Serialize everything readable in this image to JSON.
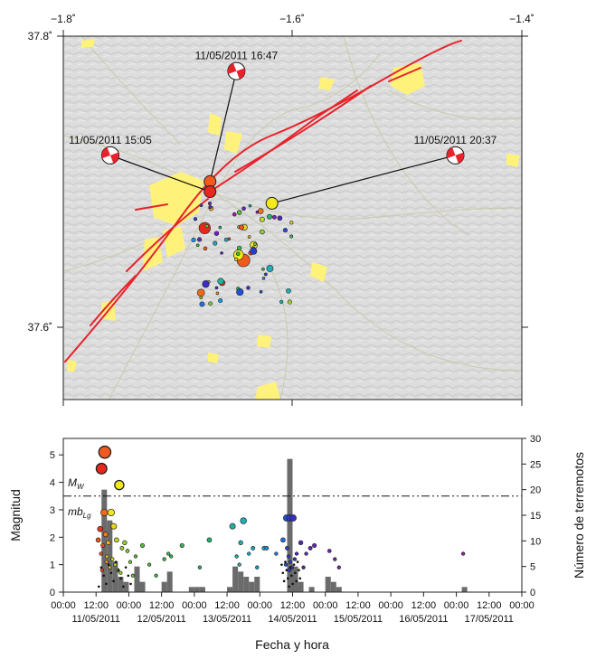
{
  "map": {
    "lon_ticks": [
      "−1.8˚",
      "−1.6˚",
      "−1.4˚"
    ],
    "lat_ticks": [
      "37.8˚",
      "37.6˚"
    ],
    "lon_range": [
      -1.8,
      -1.4
    ],
    "lat_range": [
      37.55,
      37.8
    ],
    "fault_color": "#e8222a",
    "urban_color": "#fff27a",
    "mechanisms": [
      {
        "label": "11/05/2011 16:47",
        "lon": -1.649,
        "lat": 37.776,
        "epi_lon": -1.672,
        "epi_lat": 37.7
      },
      {
        "label": "11/05/2011 15:05",
        "lon": -1.759,
        "lat": 37.718,
        "epi_lon": -1.672,
        "epi_lat": 37.693
      },
      {
        "label": "11/05/2011 20:37",
        "lon": -1.458,
        "lat": 37.718,
        "epi_lon": -1.618,
        "epi_lat": 37.685
      }
    ]
  },
  "chart_data": {
    "type": "scatter",
    "xlabel": "Fecha y hora",
    "ylabel": "Magnitud",
    "y2label": "Número de terremotos",
    "ylim": [
      0,
      5.6
    ],
    "y2lim": [
      0,
      30
    ],
    "xlim_hours": [
      0,
      168
    ],
    "x_ticks": [
      "00:00",
      "12:00",
      "00:00",
      "12:00",
      "00:00",
      "12:00",
      "00:00",
      "12:00",
      "00:00",
      "12:00",
      "00:00",
      "12:00",
      "00:00",
      "12:00",
      "00:00"
    ],
    "date_labels": [
      "11/05/2011",
      "12/05/2011",
      "13/05/2011",
      "14/05/2011",
      "15/05/2011",
      "16/05/2011",
      "17/05/2011"
    ],
    "y_ticks": [
      "0",
      "1",
      "2",
      "3",
      "4",
      "5"
    ],
    "y2_ticks": [
      "0",
      "5",
      "10",
      "15",
      "20",
      "25",
      "30"
    ],
    "mw_label": "MW",
    "mblg_label": "mbLg",
    "threshold_magnitude": 3.5,
    "histogram": {
      "bin_hours": 2,
      "counts": [
        {
          "hour": 14,
          "count": 20
        },
        {
          "hour": 16,
          "count": 14
        },
        {
          "hour": 18,
          "count": 6
        },
        {
          "hour": 20,
          "count": 3
        },
        {
          "hour": 22,
          "count": 2
        },
        {
          "hour": 26,
          "count": 5
        },
        {
          "hour": 28,
          "count": 2
        },
        {
          "hour": 36,
          "count": 2
        },
        {
          "hour": 38,
          "count": 4
        },
        {
          "hour": 46,
          "count": 1
        },
        {
          "hour": 48,
          "count": 1
        },
        {
          "hour": 50,
          "count": 1
        },
        {
          "hour": 60,
          "count": 1
        },
        {
          "hour": 62,
          "count": 5
        },
        {
          "hour": 64,
          "count": 4
        },
        {
          "hour": 66,
          "count": 3
        },
        {
          "hour": 68,
          "count": 2
        },
        {
          "hour": 70,
          "count": 3
        },
        {
          "hour": 82,
          "count": 26
        },
        {
          "hour": 84,
          "count": 5
        },
        {
          "hour": 86,
          "count": 2
        },
        {
          "hour": 90,
          "count": 1
        },
        {
          "hour": 96,
          "count": 3
        },
        {
          "hour": 98,
          "count": 2
        },
        {
          "hour": 100,
          "count": 1
        },
        {
          "hour": 146,
          "count": 1
        }
      ]
    },
    "events": [
      {
        "hour": 15.2,
        "mag": 5.1,
        "color": "#f05a1e"
      },
      {
        "hour": 14.0,
        "mag": 4.5,
        "color": "#e8271e"
      },
      {
        "hour": 20.5,
        "mag": 3.9,
        "color": "#f2ea1a"
      },
      {
        "hour": 15.0,
        "mag": 2.9,
        "color": "#ee6a1a"
      },
      {
        "hour": 17.5,
        "mag": 2.9,
        "color": "#f3e31a"
      },
      {
        "hour": 13.5,
        "mag": 2.3,
        "color": "#e8331e"
      },
      {
        "hour": 15.5,
        "mag": 2.1,
        "color": "#f07a1a"
      },
      {
        "hour": 18.5,
        "mag": 2.4,
        "color": "#e8d81a"
      },
      {
        "hour": 19.5,
        "mag": 1.9,
        "color": "#c3dc1f"
      },
      {
        "hour": 14.5,
        "mag": 1.7,
        "color": "#ef4a1d"
      },
      {
        "hour": 16.5,
        "mag": 1.8,
        "color": "#f3b21c"
      },
      {
        "hour": 21.5,
        "mag": 1.6,
        "color": "#9fd22a"
      },
      {
        "hour": 13.8,
        "mag": 1.4,
        "color": "#e85a1e"
      },
      {
        "hour": 16.0,
        "mag": 1.3,
        "color": "#f2c81c"
      },
      {
        "hour": 18.0,
        "mag": 1.2,
        "color": "#d6e01f"
      },
      {
        "hour": 22.5,
        "mag": 1.8,
        "color": "#8fd12c"
      },
      {
        "hour": 23.5,
        "mag": 1.5,
        "color": "#7acb2f"
      },
      {
        "hour": 19.0,
        "mag": 1.0,
        "color": "#b8d824"
      },
      {
        "hour": 17.0,
        "mag": 0.9,
        "color": "#e6c21d"
      },
      {
        "hour": 20.0,
        "mag": 0.8,
        "color": "#a9d426"
      },
      {
        "hour": 14.2,
        "mag": 0.8,
        "color": "#ee4a1d"
      },
      {
        "hour": 21.0,
        "mag": 0.7,
        "color": "#9ad02b"
      },
      {
        "hour": 15.8,
        "mag": 1.1,
        "color": "#f09a1b"
      },
      {
        "hour": 12.8,
        "mag": 1.9,
        "color": "#f0551e"
      },
      {
        "hour": 24.5,
        "mag": 1.1,
        "color": "#6cc832"
      },
      {
        "hour": 25.5,
        "mag": 0.6,
        "color": "#5ec534"
      },
      {
        "hour": 26.5,
        "mag": 1.3,
        "color": "#5cc437"
      },
      {
        "hour": 29.0,
        "mag": 1.7,
        "color": "#52c23a"
      },
      {
        "hour": 31.5,
        "mag": 1.0,
        "color": "#4dbf3e"
      },
      {
        "hour": 34.0,
        "mag": 0.6,
        "color": "#47be42"
      },
      {
        "hour": 37.0,
        "mag": 1.2,
        "color": "#3fbc48"
      },
      {
        "hour": 38.5,
        "mag": 1.4,
        "color": "#3abb4e"
      },
      {
        "hour": 39.5,
        "mag": 1.3,
        "color": "#36ba53"
      },
      {
        "hour": 43.5,
        "mag": 1.7,
        "color": "#30b85a"
      },
      {
        "hour": 50.0,
        "mag": 0.9,
        "color": "#2bb763"
      },
      {
        "hour": 53.5,
        "mag": 1.9,
        "color": "#27b56a"
      },
      {
        "hour": 62.0,
        "mag": 2.4,
        "color": "#22b3a0"
      },
      {
        "hour": 63.5,
        "mag": 1.3,
        "color": "#20b2aa"
      },
      {
        "hour": 65.0,
        "mag": 1.8,
        "color": "#1eb0b4"
      },
      {
        "hour": 66.0,
        "mag": 2.6,
        "color": "#1caebc"
      },
      {
        "hour": 64.5,
        "mag": 1.0,
        "color": "#20afb0"
      },
      {
        "hour": 68.0,
        "mag": 1.4,
        "color": "#1aaac4"
      },
      {
        "hour": 69.5,
        "mag": 1.6,
        "color": "#18a6cc"
      },
      {
        "hour": 71.0,
        "mag": 0.9,
        "color": "#16a2d2"
      },
      {
        "hour": 73.5,
        "mag": 1.6,
        "color": "#169bd8"
      },
      {
        "hour": 74.5,
        "mag": 1.6,
        "color": "#1894dc"
      },
      {
        "hour": 78.0,
        "mag": 1.4,
        "color": "#1b7fdf"
      },
      {
        "hour": 80.5,
        "mag": 1.9,
        "color": "#1d72e0"
      },
      {
        "hour": 81.8,
        "mag": 2.7,
        "color": "#2050d8"
      },
      {
        "hour": 83.0,
        "mag": 2.7,
        "color": "#2a3ccd"
      },
      {
        "hour": 84.2,
        "mag": 2.7,
        "color": "#3a2cc4"
      },
      {
        "hour": 82.0,
        "mag": 1.6,
        "color": "#2a46d2"
      },
      {
        "hour": 82.5,
        "mag": 1.3,
        "color": "#2d42d0"
      },
      {
        "hour": 83.2,
        "mag": 1.1,
        "color": "#3040ce"
      },
      {
        "hour": 81.5,
        "mag": 1.0,
        "color": "#2450d6"
      },
      {
        "hour": 83.8,
        "mag": 0.9,
        "color": "#3838c8"
      },
      {
        "hour": 84.8,
        "mag": 1.2,
        "color": "#4030c2"
      },
      {
        "hour": 82.8,
        "mag": 0.8,
        "color": "#3240cc"
      },
      {
        "hour": 85.5,
        "mag": 1.4,
        "color": "#4a2cc0"
      },
      {
        "hour": 87.0,
        "mag": 1.8,
        "color": "#5428be"
      },
      {
        "hour": 89.0,
        "mag": 1.4,
        "color": "#5d26bc"
      },
      {
        "hour": 88.0,
        "mag": 0.9,
        "color": "#5826bd"
      },
      {
        "hour": 90.5,
        "mag": 1.6,
        "color": "#6424ba"
      },
      {
        "hour": 92.0,
        "mag": 1.7,
        "color": "#6c22b8"
      },
      {
        "hour": 97.5,
        "mag": 1.5,
        "color": "#7a20b4"
      },
      {
        "hour": 99.5,
        "mag": 1.2,
        "color": "#801fb2"
      },
      {
        "hour": 101.0,
        "mag": 0.9,
        "color": "#861eb0"
      },
      {
        "hour": 146.5,
        "mag": 1.4,
        "color": "#9a1ca8"
      }
    ]
  }
}
